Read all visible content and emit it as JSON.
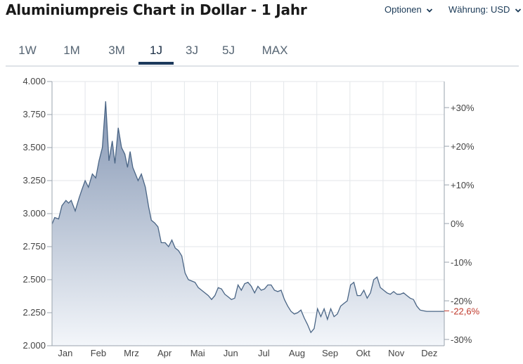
{
  "header": {
    "title": "Aluminiumpreis Chart in Dollar - 1 Jahr",
    "options_label": "Optionen",
    "currency_label": "Währung: USD"
  },
  "tabs": [
    {
      "label": "1W",
      "active": false
    },
    {
      "label": "1M",
      "active": false
    },
    {
      "label": "3M",
      "active": false
    },
    {
      "label": "1J",
      "active": true
    },
    {
      "label": "3J",
      "active": false
    },
    {
      "label": "5J",
      "active": false
    },
    {
      "label": "MAX",
      "active": false
    }
  ],
  "colors": {
    "line": "#4a6585",
    "fill_top": "#8496b3",
    "fill_bottom": "#f3f6fa",
    "grid": "#e3e6ea",
    "axis_text": "#444444",
    "negative": "#c0392b",
    "tab_active": "#1d3a5c"
  },
  "chart_data": {
    "type": "area",
    "title": "",
    "xlabel": "",
    "ylabel": "",
    "ylim": [
      2000,
      4000
    ],
    "y_ticks": [
      "4.000",
      "3.750",
      "3.500",
      "3.250",
      "3.000",
      "2.750",
      "2.500",
      "2.250",
      "2.000"
    ],
    "y_tick_values": [
      4000,
      3750,
      3500,
      3250,
      3000,
      2750,
      2500,
      2250,
      2000
    ],
    "right_axis": {
      "ticks": [
        "+30%",
        "+20%",
        "+10%",
        "0%",
        "-10%",
        "-20%",
        "-30%"
      ],
      "values": [
        30,
        20,
        10,
        0,
        -10,
        -20,
        -30
      ],
      "base": 2925,
      "current_label": "-22,6%",
      "current_value": -22.6
    },
    "x_months": [
      "Jan",
      "Feb",
      "Mrz",
      "Apr",
      "Mai",
      "Jun",
      "Jul",
      "Aug",
      "Sep",
      "Okt",
      "Nov",
      "Dez"
    ],
    "x_month_positions": [
      0.4,
      1.4,
      2.4,
      3.4,
      4.4,
      5.4,
      6.4,
      7.4,
      8.4,
      9.4,
      10.4,
      11.4
    ],
    "grid": true,
    "series": [
      {
        "x": [
          0,
          0.08,
          0.2,
          0.3,
          0.42,
          0.5,
          0.58,
          0.7,
          0.82,
          0.9,
          1.0,
          1.1,
          1.22,
          1.32,
          1.42,
          1.52,
          1.62,
          1.72,
          1.82,
          1.9,
          2.0,
          2.1,
          2.2,
          2.28,
          2.36,
          2.44,
          2.52,
          2.6,
          2.7,
          2.82,
          2.92,
          3.0,
          3.1,
          3.2,
          3.3,
          3.42,
          3.52,
          3.62,
          3.72,
          3.82,
          3.92,
          4.02,
          4.12,
          4.22,
          4.32,
          4.42,
          4.52,
          4.62,
          4.72,
          4.82,
          4.92,
          5.02,
          5.12,
          5.22,
          5.32,
          5.42,
          5.52,
          5.62,
          5.72,
          5.82,
          5.92,
          6.02,
          6.12,
          6.22,
          6.32,
          6.42,
          6.52,
          6.62,
          6.72,
          6.82,
          6.92,
          7.02,
          7.12,
          7.22,
          7.32,
          7.42,
          7.52,
          7.62,
          7.72,
          7.82,
          7.92,
          8.02,
          8.12,
          8.22,
          8.32,
          8.42,
          8.52,
          8.62,
          8.72,
          8.82,
          8.92,
          9.02,
          9.12,
          9.22,
          9.32,
          9.42,
          9.52,
          9.62,
          9.72,
          9.82,
          9.92,
          10.02,
          10.12,
          10.22,
          10.32,
          10.42,
          10.52,
          10.62,
          10.72,
          10.82,
          10.92,
          11.02,
          11.12,
          11.22,
          11.32,
          11.42,
          11.52,
          11.62,
          11.72,
          11.85
        ],
        "values": [
          2920,
          2970,
          2960,
          3060,
          3100,
          3080,
          3100,
          3020,
          3120,
          3180,
          3250,
          3200,
          3300,
          3270,
          3400,
          3500,
          3850,
          3400,
          3550,
          3380,
          3650,
          3500,
          3450,
          3350,
          3470,
          3350,
          3300,
          3250,
          3300,
          3200,
          3050,
          2950,
          2930,
          2900,
          2780,
          2780,
          2750,
          2800,
          2740,
          2720,
          2680,
          2550,
          2500,
          2490,
          2480,
          2440,
          2420,
          2400,
          2380,
          2350,
          2380,
          2440,
          2430,
          2390,
          2370,
          2350,
          2360,
          2460,
          2420,
          2470,
          2480,
          2450,
          2400,
          2450,
          2420,
          2430,
          2460,
          2460,
          2420,
          2410,
          2420,
          2350,
          2300,
          2260,
          2240,
          2250,
          2270,
          2210,
          2160,
          2100,
          2130,
          2280,
          2220,
          2280,
          2200,
          2280,
          2220,
          2240,
          2300,
          2320,
          2340,
          2460,
          2480,
          2380,
          2380,
          2420,
          2360,
          2400,
          2500,
          2520,
          2440,
          2420,
          2400,
          2390,
          2410,
          2390,
          2390,
          2400,
          2380,
          2360,
          2350,
          2300,
          2270,
          2265,
          2260,
          2260,
          2260,
          2260,
          2260,
          2260
        ]
      }
    ]
  }
}
